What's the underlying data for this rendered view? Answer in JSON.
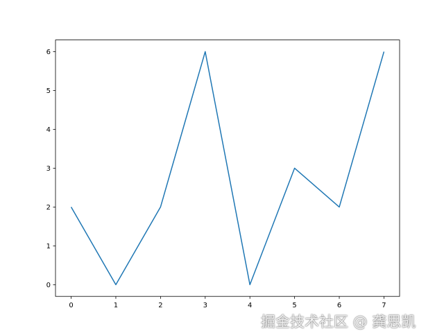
{
  "chart_data": {
    "type": "line",
    "title": "",
    "xlabel": "",
    "ylabel": "",
    "x": [
      0,
      1,
      2,
      3,
      4,
      5,
      6,
      7
    ],
    "series": [
      {
        "values": [
          2,
          0,
          2,
          6,
          0,
          3,
          2,
          6
        ],
        "color": "#1f77b4"
      }
    ],
    "xlim": [
      -0.35,
      7.35
    ],
    "ylim": [
      -0.3,
      6.3
    ],
    "xticks": [
      "0",
      "1",
      "2",
      "3",
      "4",
      "5",
      "6",
      "7"
    ],
    "yticks": [
      "0",
      "1",
      "2",
      "3",
      "4",
      "5",
      "6"
    ],
    "grid": false
  },
  "watermark": "掘金技术社区 @ 龚思凯"
}
